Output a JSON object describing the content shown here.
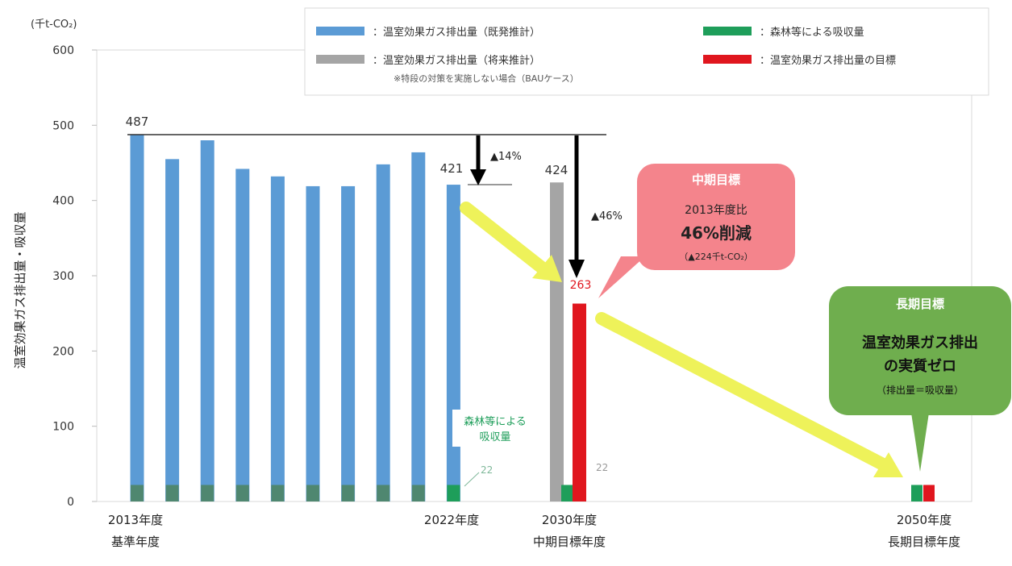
{
  "chart_data": {
    "type": "bar",
    "unit_label": "(千t-CO₂)",
    "ylabel": "温室効果ガス排出量・吸収量",
    "ylim": [
      0,
      600
    ],
    "yticks": [
      0,
      100,
      200,
      300,
      400,
      500,
      600
    ],
    "legend": {
      "placement": "top-right",
      "items": [
        {
          "key": "actual",
          "label": "：温室効果ガス排出量（既発推計）",
          "color": "#5B9BD5"
        },
        {
          "key": "projected",
          "label": "：温室効果ガス排出量（将来推計）",
          "sublabel": "※特段の対策を実施しない場合（BAUケース）",
          "color": "#A5A5A5"
        },
        {
          "key": "absorption",
          "label": "：森林等による吸収量",
          "color": "#1E9E5A"
        },
        {
          "key": "target",
          "label": "：温室効果ガス排出量の目標",
          "color": "#E0161E"
        }
      ]
    },
    "series": [
      {
        "key": "actual",
        "values": [
          487,
          455,
          480,
          442,
          432,
          419,
          419,
          448,
          464,
          421
        ]
      },
      {
        "key": "absorption",
        "values": [
          22,
          22,
          22,
          22,
          22,
          22,
          22,
          22,
          22,
          22
        ]
      },
      {
        "key": "projected",
        "value": 424
      },
      {
        "key": "absorption_2030",
        "value": 22
      },
      {
        "key": "target",
        "value": 263
      },
      {
        "key": "absorption_2050",
        "value": 22
      },
      {
        "key": "target_2050",
        "value": 22
      }
    ],
    "bar_label_first": "487",
    "bar_label_2022": "421",
    "bar_label_2030_bau": "424",
    "bar_label_2030_target": "263",
    "small_label_22a": "22",
    "small_label_22b": "22",
    "x_labels": [
      {
        "line1": "2013年度",
        "line2": "基準年度"
      },
      {
        "line1": "2022年度",
        "line2": ""
      },
      {
        "line1": "2030年度",
        "line2": "中期目標年度"
      },
      {
        "line1": "2050年度",
        "line2": "長期目標年度"
      }
    ],
    "annotations": {
      "drop_14": "▲14%",
      "drop_46": "▲46%",
      "absorption_note": [
        "森林等による",
        "吸収量"
      ],
      "mid_term": {
        "title": "中期目標",
        "line1": "2013年度比",
        "line2": "46%削減",
        "line3": "（▲224千t-CO₂）"
      },
      "long_term": {
        "title": "長期目標",
        "line1": "温室効果ガス排出",
        "line2": "の実質ゼロ",
        "line3": "（排出量＝吸収量）"
      }
    },
    "colors": {
      "actual": "#5B9BD5",
      "projected": "#A5A5A5",
      "absorption": "#1E9E5A",
      "target": "#E0161E",
      "arrow_yellow": "#EEF25A",
      "mid_bubble": "#F4848C",
      "long_bubble": "#6FAE4E"
    }
  }
}
